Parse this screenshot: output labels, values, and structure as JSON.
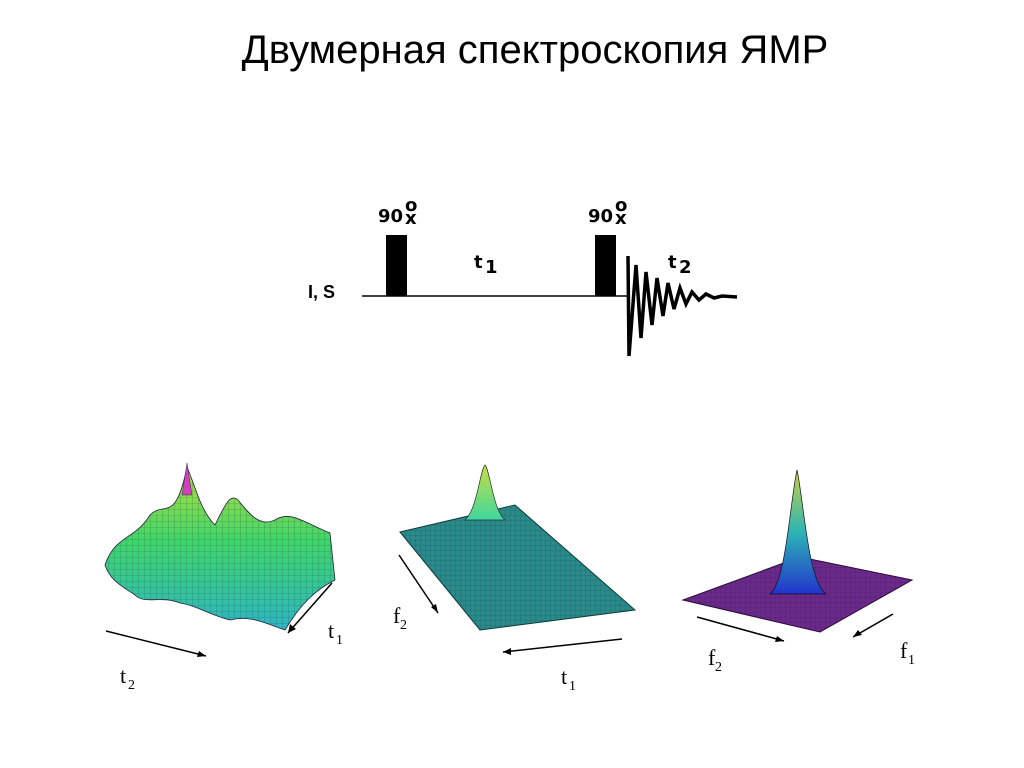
{
  "title": "Двумерная спектроскопия ЯМР",
  "pulse_sequence": {
    "channel_label": "I, S",
    "pulse1_label": "90",
    "pulse1_sup": "o",
    "pulse1_sub": "x",
    "pulse2_label": "90",
    "pulse2_sup": "o",
    "pulse2_sub": "x",
    "delay1": "t",
    "delay1_sub": "1",
    "delay2": "t",
    "delay2_sub": "2"
  },
  "plots": [
    {
      "name": "time-domain",
      "ax1": "t",
      "ax1_sub": "1",
      "ax2": "t",
      "ax2_sub": "2"
    },
    {
      "name": "mixed-domain",
      "ax1": "f",
      "ax1_sub": "2",
      "ax2": "t",
      "ax2_sub": "1"
    },
    {
      "name": "frequency-domain",
      "ax1": "f",
      "ax1_sub": "1",
      "ax2": "f",
      "ax2_sub": "2"
    }
  ],
  "colors": {
    "surface_green": "#3fd6a0",
    "surface_teal": "#2cb5b5",
    "surface_purple": "#6a2a8a",
    "peak_blue": "#2233cc"
  }
}
